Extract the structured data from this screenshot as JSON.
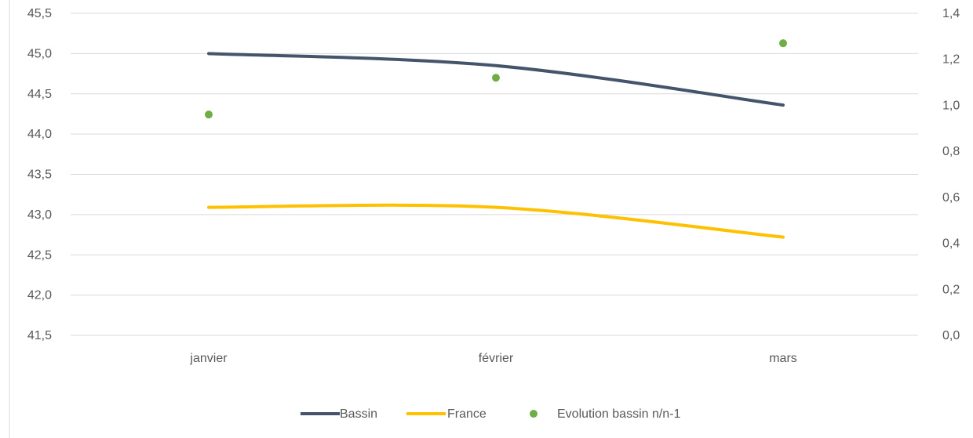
{
  "chart_data": {
    "type": "line",
    "categories": [
      "janvier",
      "février",
      "mars"
    ],
    "y_left": {
      "ticks": [
        "41,5",
        "42,0",
        "42,5",
        "43,0",
        "43,5",
        "44,0",
        "44,5",
        "45,0",
        "45,5"
      ],
      "min": 41.5,
      "max": 45.5
    },
    "y_right": {
      "ticks": [
        "0,0",
        "0,2",
        "0,4",
        "0,6",
        "0,8",
        "1,0",
        "1,2",
        "1,4"
      ],
      "min": 0.0,
      "max": 1.4
    },
    "grid": true,
    "legend_position": "bottom",
    "series": [
      {
        "name": "Bassin",
        "type": "line",
        "axis": "left",
        "color": "#44546A",
        "values": [
          45.0,
          44.85,
          44.36
        ]
      },
      {
        "name": "France",
        "type": "line",
        "axis": "left",
        "color": "#FFC000",
        "values": [
          43.09,
          43.09,
          42.72
        ]
      },
      {
        "name": "Evolution bassin n/n-1",
        "type": "scatter",
        "axis": "right",
        "color": "#70AD47",
        "values": [
          0.96,
          1.12,
          1.27
        ]
      }
    ]
  }
}
